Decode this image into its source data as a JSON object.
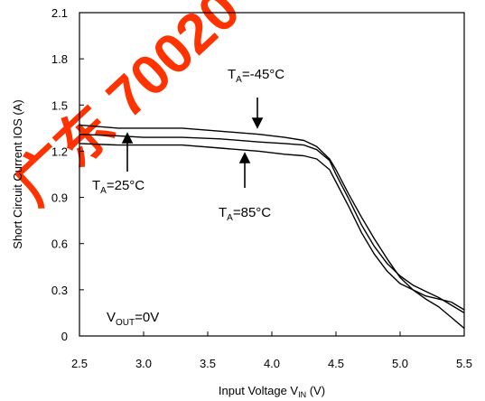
{
  "chart_data": {
    "type": "line",
    "xlabel": "Input Voltage V",
    "xlabel_sub": "IN",
    "xlabel_unit": " (V)",
    "ylabel": "Short Circuit Current IOS (A)",
    "xlim": [
      2.5,
      5.5
    ],
    "ylim": [
      0,
      2.1
    ],
    "xticks": [
      "2.5",
      "3.0",
      "3.5",
      "4.0",
      "4.5",
      "5.0",
      "5.5"
    ],
    "yticks": [
      "0",
      "0.3",
      "0.6",
      "0.9",
      "1.2",
      "1.5",
      "1.8",
      "2.1"
    ],
    "grid": false,
    "series": [
      {
        "name": "T_A=-45°C",
        "x": [
          2.5,
          2.8,
          3.0,
          3.3,
          3.6,
          3.9,
          4.1,
          4.25,
          4.35,
          4.45,
          4.5,
          4.6,
          4.7,
          4.8,
          4.9,
          5.0,
          5.1,
          5.2,
          5.3,
          5.4,
          5.5
        ],
        "y": [
          1.37,
          1.35,
          1.35,
          1.35,
          1.33,
          1.31,
          1.29,
          1.27,
          1.23,
          1.15,
          1.08,
          0.92,
          0.77,
          0.63,
          0.5,
          0.38,
          0.3,
          0.24,
          0.19,
          0.12,
          0.05
        ]
      },
      {
        "name": "T_A=25°C",
        "x": [
          2.5,
          2.8,
          3.0,
          3.3,
          3.6,
          3.9,
          4.1,
          4.25,
          4.35,
          4.45,
          4.5,
          4.6,
          4.7,
          4.8,
          4.9,
          5.0,
          5.1,
          5.2,
          5.3,
          5.4,
          5.5
        ],
        "y": [
          1.31,
          1.3,
          1.29,
          1.29,
          1.28,
          1.26,
          1.25,
          1.24,
          1.21,
          1.14,
          1.05,
          0.89,
          0.72,
          0.58,
          0.47,
          0.39,
          0.33,
          0.29,
          0.25,
          0.2,
          0.15
        ]
      },
      {
        "name": "T_A=85°C",
        "x": [
          2.5,
          2.8,
          3.0,
          3.3,
          3.6,
          3.9,
          4.1,
          4.25,
          4.35,
          4.45,
          4.5,
          4.6,
          4.7,
          4.8,
          4.9,
          5.0,
          5.1,
          5.2,
          5.3,
          5.4,
          5.5
        ],
        "y": [
          1.25,
          1.24,
          1.24,
          1.24,
          1.22,
          1.2,
          1.18,
          1.17,
          1.15,
          1.08,
          1.0,
          0.84,
          0.67,
          0.53,
          0.42,
          0.34,
          0.3,
          0.26,
          0.24,
          0.22,
          0.17
        ]
      }
    ],
    "annotations": {
      "t45": {
        "main": "T",
        "sub": "A",
        "rest": "=-45°C"
      },
      "t25": {
        "main": "T",
        "sub": "A",
        "rest": "=25°C"
      },
      "t85": {
        "main": "T",
        "sub": "A",
        "rest": "=85°C"
      },
      "vout": {
        "main": "V",
        "sub": "OUT",
        "rest": "=0V"
      }
    },
    "watermark": "广东 70020"
  }
}
